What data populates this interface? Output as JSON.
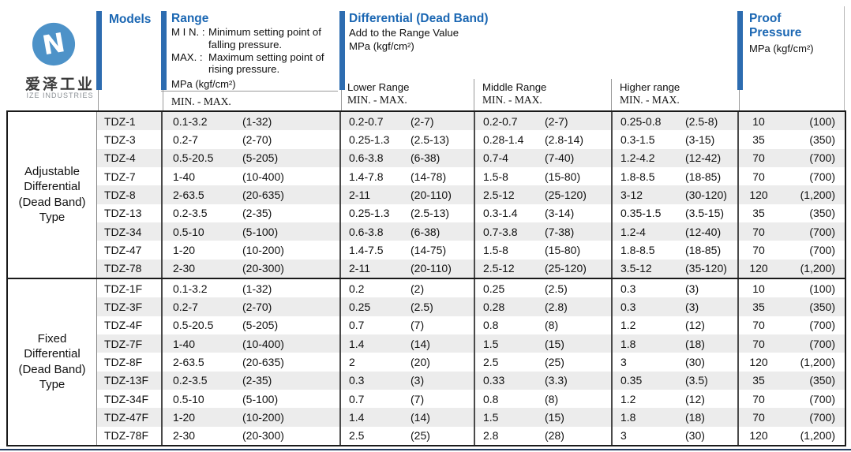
{
  "logo": {
    "company_cn": "爱泽工业",
    "company_en": "IZE INDUSTRIES"
  },
  "colors": {
    "header_blue": "#1b67b3",
    "bar_blue": "#2d6cb0",
    "logo_blue": "#4d92c8",
    "stripe_gray": "#ececec"
  },
  "header": {
    "models_label": "Models",
    "range": {
      "title": "Range",
      "min_label": "M I N. :",
      "min_line1": "Minimum setting point of",
      "min_line2": "falling pressure.",
      "max_label": "MAX. :",
      "max_line1": "Maximum setting point of",
      "max_line2": "rising pressure.",
      "unit": "MPa (kgf/cm²)",
      "minmax": "MIN. - MAX."
    },
    "differential": {
      "title": "Differential  (Dead Band)",
      "subtitle": "Add to the Range Value",
      "unit": "MPa (kgf/cm²)",
      "columns": [
        {
          "label": "Lower Range",
          "minmax": "MIN. - MAX."
        },
        {
          "label": "Middle Range",
          "minmax": "MIN. - MAX."
        },
        {
          "label": "Higher range",
          "minmax": "MIN. - MAX."
        }
      ]
    },
    "proof": {
      "title_line1": "Proof",
      "title_line2": "Pressure",
      "unit": "MPa (kgf/cm²)"
    }
  },
  "sections": [
    {
      "type_label": [
        "Adjustable",
        "Differential",
        "(Dead Band)",
        "Type"
      ],
      "rows": [
        {
          "model": "TDZ-1",
          "range": [
            "0.1-3.2",
            "(1-32)"
          ],
          "lower": [
            "0.2-0.7",
            "(2-7)"
          ],
          "middle": [
            "0.2-0.7",
            "(2-7)"
          ],
          "higher": [
            "0.25-0.8",
            "(2.5-8)"
          ],
          "proof": [
            "10",
            "(100)"
          ]
        },
        {
          "model": "TDZ-3",
          "range": [
            "0.2-7",
            "(2-70)"
          ],
          "lower": [
            "0.25-1.3",
            "(2.5-13)"
          ],
          "middle": [
            "0.28-1.4",
            "(2.8-14)"
          ],
          "higher": [
            "0.3-1.5",
            "(3-15)"
          ],
          "proof": [
            "35",
            "(350)"
          ]
        },
        {
          "model": "TDZ-4",
          "range": [
            "0.5-20.5",
            "(5-205)"
          ],
          "lower": [
            "0.6-3.8",
            "(6-38)"
          ],
          "middle": [
            "0.7-4",
            "(7-40)"
          ],
          "higher": [
            "1.2-4.2",
            "(12-42)"
          ],
          "proof": [
            "70",
            "(700)"
          ]
        },
        {
          "model": "TDZ-7",
          "range": [
            "1-40",
            "(10-400)"
          ],
          "lower": [
            "1.4-7.8",
            "(14-78)"
          ],
          "middle": [
            "1.5-8",
            "(15-80)"
          ],
          "higher": [
            "1.8-8.5",
            "(18-85)"
          ],
          "proof": [
            "70",
            "(700)"
          ]
        },
        {
          "model": "TDZ-8",
          "range": [
            "2-63.5",
            "(20-635)"
          ],
          "lower": [
            "2-11",
            "(20-110)"
          ],
          "middle": [
            "2.5-12",
            "(25-120)"
          ],
          "higher": [
            "3-12",
            "(30-120)"
          ],
          "proof": [
            "120",
            "(1,200)"
          ]
        },
        {
          "model": "TDZ-13",
          "range": [
            "0.2-3.5",
            "(2-35)"
          ],
          "lower": [
            "0.25-1.3",
            "(2.5-13)"
          ],
          "middle": [
            "0.3-1.4",
            "(3-14)"
          ],
          "higher": [
            "0.35-1.5",
            "(3.5-15)"
          ],
          "proof": [
            "35",
            "(350)"
          ]
        },
        {
          "model": "TDZ-34",
          "range": [
            "0.5-10",
            "(5-100)"
          ],
          "lower": [
            "0.6-3.8",
            "(6-38)"
          ],
          "middle": [
            "0.7-3.8",
            "(7-38)"
          ],
          "higher": [
            "1.2-4",
            "(12-40)"
          ],
          "proof": [
            "70",
            "(700)"
          ]
        },
        {
          "model": "TDZ-47",
          "range": [
            "1-20",
            "(10-200)"
          ],
          "lower": [
            "1.4-7.5",
            "(14-75)"
          ],
          "middle": [
            "1.5-8",
            "(15-80)"
          ],
          "higher": [
            "1.8-8.5",
            "(18-85)"
          ],
          "proof": [
            "70",
            "(700)"
          ]
        },
        {
          "model": "TDZ-78",
          "range": [
            "2-30",
            "(20-300)"
          ],
          "lower": [
            "2-11",
            "(20-110)"
          ],
          "middle": [
            "2.5-12",
            "(25-120)"
          ],
          "higher": [
            "3.5-12",
            "(35-120)"
          ],
          "proof": [
            "120",
            "(1,200)"
          ]
        }
      ]
    },
    {
      "type_label": [
        "Fixed",
        "Differential",
        "(Dead Band)",
        "Type"
      ],
      "rows": [
        {
          "model": "TDZ-1F",
          "range": [
            "0.1-3.2",
            "(1-32)"
          ],
          "lower": [
            "0.2",
            "(2)"
          ],
          "middle": [
            "0.25",
            "(2.5)"
          ],
          "higher": [
            "0.3",
            "(3)"
          ],
          "proof": [
            "10",
            "(100)"
          ]
        },
        {
          "model": "TDZ-3F",
          "range": [
            "0.2-7",
            "(2-70)"
          ],
          "lower": [
            "0.25",
            "(2.5)"
          ],
          "middle": [
            "0.28",
            "(2.8)"
          ],
          "higher": [
            "0.3",
            "(3)"
          ],
          "proof": [
            "35",
            "(350)"
          ]
        },
        {
          "model": "TDZ-4F",
          "range": [
            "0.5-20.5",
            "(5-205)"
          ],
          "lower": [
            "0.7",
            "(7)"
          ],
          "middle": [
            "0.8",
            "(8)"
          ],
          "higher": [
            "1.2",
            "(12)"
          ],
          "proof": [
            "70",
            "(700)"
          ]
        },
        {
          "model": "TDZ-7F",
          "range": [
            "1-40",
            "(10-400)"
          ],
          "lower": [
            "1.4",
            "(14)"
          ],
          "middle": [
            "1.5",
            "(15)"
          ],
          "higher": [
            "1.8",
            "(18)"
          ],
          "proof": [
            "70",
            "(700)"
          ]
        },
        {
          "model": "TDZ-8F",
          "range": [
            "2-63.5",
            "(20-635)"
          ],
          "lower": [
            "2",
            "(20)"
          ],
          "middle": [
            "2.5",
            "(25)"
          ],
          "higher": [
            "3",
            "(30)"
          ],
          "proof": [
            "120",
            "(1,200)"
          ]
        },
        {
          "model": "TDZ-13F",
          "range": [
            "0.2-3.5",
            "(2-35)"
          ],
          "lower": [
            "0.3",
            "(3)"
          ],
          "middle": [
            "0.33",
            "(3.3)"
          ],
          "higher": [
            "0.35",
            "(3.5)"
          ],
          "proof": [
            "35",
            "(350)"
          ]
        },
        {
          "model": "TDZ-34F",
          "range": [
            "0.5-10",
            "(5-100)"
          ],
          "lower": [
            "0.7",
            "(7)"
          ],
          "middle": [
            "0.8",
            "(8)"
          ],
          "higher": [
            "1.2",
            "(12)"
          ],
          "proof": [
            "70",
            "(700)"
          ]
        },
        {
          "model": "TDZ-47F",
          "range": [
            "1-20",
            "(10-200)"
          ],
          "lower": [
            "1.4",
            "(14)"
          ],
          "middle": [
            "1.5",
            "(15)"
          ],
          "higher": [
            "1.8",
            "(18)"
          ],
          "proof": [
            "70",
            "(700)"
          ]
        },
        {
          "model": "TDZ-78F",
          "range": [
            "2-30",
            "(20-300)"
          ],
          "lower": [
            "2.5",
            "(25)"
          ],
          "middle": [
            "2.8",
            "(28)"
          ],
          "higher": [
            "3",
            "(30)"
          ],
          "proof": [
            "120",
            "(1,200)"
          ]
        }
      ]
    }
  ]
}
